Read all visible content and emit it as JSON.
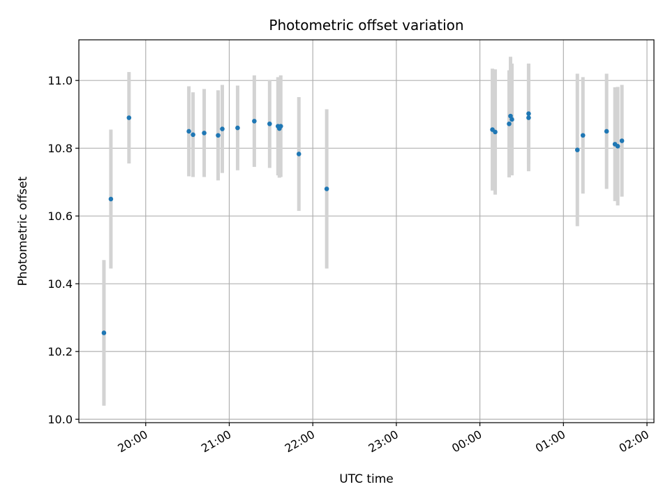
{
  "chart_data": {
    "type": "scatter",
    "title": "Photometric offset variation",
    "xlabel": "UTC time",
    "ylabel": "Photometric offset",
    "x_axis": "time",
    "xlim": [
      "19:12",
      "26:05"
    ],
    "ylim": [
      9.99,
      11.12
    ],
    "grid": true,
    "x_tick_values": [
      "20:00",
      "21:00",
      "22:00",
      "23:00",
      "24:00",
      "25:00",
      "26:00"
    ],
    "x_tick_labels": [
      "20:00",
      "21:00",
      "22:00",
      "23:00",
      "00:00",
      "01:00",
      "02:00"
    ],
    "y_ticks": [
      10.0,
      10.2,
      10.4,
      10.6,
      10.8,
      11.0
    ],
    "y_tick_labels": [
      "10.0",
      "10.2",
      "10.4",
      "10.6",
      "10.8",
      "11.0"
    ],
    "marker_color": "#1f77b4",
    "errorbar_color": "#d3d3d3",
    "points": [
      {
        "x": "19:30",
        "y": 10.255,
        "err": 0.215
      },
      {
        "x": "19:35",
        "y": 10.65,
        "err": 0.205
      },
      {
        "x": "19:48",
        "y": 10.89,
        "err": 0.135
      },
      {
        "x": "20:31",
        "y": 10.85,
        "err": 0.133
      },
      {
        "x": "20:34",
        "y": 10.84,
        "err": 0.125
      },
      {
        "x": "20:42",
        "y": 10.845,
        "err": 0.13
      },
      {
        "x": "20:52",
        "y": 10.838,
        "err": 0.133
      },
      {
        "x": "20:55",
        "y": 10.857,
        "err": 0.13
      },
      {
        "x": "21:06",
        "y": 10.86,
        "err": 0.125
      },
      {
        "x": "21:18",
        "y": 10.88,
        "err": 0.135
      },
      {
        "x": "21:29",
        "y": 10.872,
        "err": 0.13
      },
      {
        "x": "21:35",
        "y": 10.865,
        "err": 0.145
      },
      {
        "x": "21:36",
        "y": 10.858,
        "err": 0.145
      },
      {
        "x": "21:37",
        "y": 10.865,
        "err": 0.15
      },
      {
        "x": "21:50",
        "y": 10.783,
        "err": 0.168
      },
      {
        "x": "22:10",
        "y": 10.68,
        "err": 0.235
      },
      {
        "x": "24:09",
        "y": 10.855,
        "err": 0.18
      },
      {
        "x": "24:11",
        "y": 10.848,
        "err": 0.185
      },
      {
        "x": "24:21",
        "y": 10.872,
        "err": 0.158
      },
      {
        "x": "24:22",
        "y": 10.895,
        "err": 0.175
      },
      {
        "x": "24:23",
        "y": 10.885,
        "err": 0.165
      },
      {
        "x": "24:35",
        "y": 10.902,
        "err": 0.148
      },
      {
        "x": "24:35",
        "y": 10.89,
        "err": 0.158
      },
      {
        "x": "25:10",
        "y": 10.795,
        "err": 0.225
      },
      {
        "x": "25:14",
        "y": 10.838,
        "err": 0.172
      },
      {
        "x": "25:31",
        "y": 10.85,
        "err": 0.17
      },
      {
        "x": "25:37",
        "y": 10.812,
        "err": 0.168
      },
      {
        "x": "25:39",
        "y": 10.806,
        "err": 0.175
      },
      {
        "x": "25:42",
        "y": 10.822,
        "err": 0.165
      }
    ]
  }
}
